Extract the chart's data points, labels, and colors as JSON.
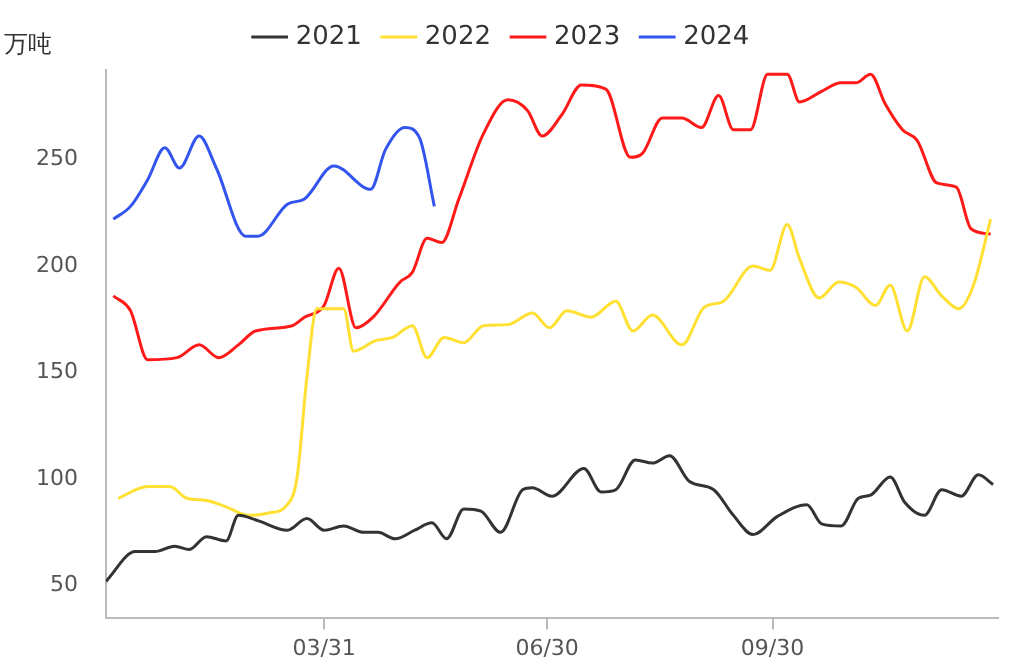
{
  "chart_data": {
    "type": "line",
    "ylabel": "万吨",
    "xlim": [
      "--01-01",
      "--12-31"
    ],
    "xticks": [
      {
        "value": "--03-31",
        "label": "03/31"
      },
      {
        "value": "--06-30",
        "label": "06/30"
      },
      {
        "value": "--09-30",
        "label": "09/30"
      }
    ],
    "ylim": [
      35,
      292
    ],
    "yticks": [
      50,
      100,
      150,
      200,
      250
    ],
    "grid": false,
    "legend": "top",
    "marker": "none",
    "line_style": "solid",
    "series": [
      {
        "name": "2021",
        "color": "#333333",
        "x": [
          "--01-01",
          "--01-13",
          "--01-21",
          "--01-29",
          "--02-04",
          "--02-11",
          "--02-19",
          "--02-24",
          "--03-04",
          "--03-16",
          "--03-24",
          "--03-31",
          "--04-08",
          "--04-16",
          "--04-22",
          "--04-29",
          "--05-07",
          "--05-14",
          "--05-20",
          "--05-27",
          "--06-03",
          "--06-11",
          "--06-20",
          "--06-24",
          "--07-02",
          "--07-15",
          "--07-22",
          "--07-28",
          "--08-05",
          "--08-12",
          "--08-19",
          "--08-27",
          "--09-06",
          "--09-14",
          "--09-22",
          "--10-02",
          "--10-14",
          "--10-20",
          "--10-28",
          "--11-04",
          "--11-09",
          "--11-17",
          "--11-23",
          "--12-01",
          "--12-08",
          "--12-16",
          "--12-23",
          "--12-29"
        ],
        "values": [
          52,
          66,
          66,
          68.5,
          67,
          73,
          71,
          83,
          80.5,
          76,
          81.5,
          76,
          78,
          75,
          75,
          72,
          76,
          79.5,
          72,
          86,
          85,
          75,
          95,
          96,
          92,
          105,
          94,
          95,
          109,
          107.5,
          111,
          99,
          95,
          83,
          74,
          82.5,
          88,
          79,
          78,
          91,
          92.5,
          101,
          89,
          83,
          95,
          92,
          102,
          97.5
        ]
      },
      {
        "name": "2022",
        "color": "#ffe033",
        "x": [
          "--01-06",
          "--01-18",
          "--01-27",
          "--02-03",
          "--02-11",
          "--02-19",
          "--02-28",
          "--03-08",
          "--03-16",
          "--03-20",
          "--03-24",
          "--03-28",
          "--04-08",
          "--04-12",
          "--04-21",
          "--04-28",
          "--05-06",
          "--05-12",
          "--05-19",
          "--05-27",
          "--06-04",
          "--06-14",
          "--06-24",
          "--07-01",
          "--07-08",
          "--07-18",
          "--07-28",
          "--08-04",
          "--08-12",
          "--08-24",
          "--09-02",
          "--09-10",
          "--09-22",
          "--09-29",
          "--10-06",
          "--10-11",
          "--10-19",
          "--10-27",
          "--11-03",
          "--11-11",
          "--11-17",
          "--11-24",
          "--12-01",
          "--12-08",
          "--12-15",
          "--12-21",
          "--12-28"
        ],
        "values": [
          91,
          96.5,
          96.5,
          91,
          90,
          87,
          83,
          84,
          88,
          101,
          148,
          180,
          180,
          160,
          165,
          166.5,
          172,
          157,
          166.5,
          164,
          172,
          172.5,
          178,
          171,
          179,
          176,
          183.5,
          169.5,
          177,
          163,
          180.5,
          183.5,
          200,
          198,
          219.5,
          203.5,
          185,
          192.5,
          190,
          181.5,
          191,
          169.5,
          195,
          186,
          180,
          191,
          222
        ]
      },
      {
        "name": "2023",
        "color": "#ff1a1a",
        "x": [
          "--01-04",
          "--01-11",
          "--01-18",
          "--01-30",
          "--02-08",
          "--02-16",
          "--02-24",
          "--03-03",
          "--03-18",
          "--03-23",
          "--03-31",
          "--04-06",
          "--04-13",
          "--04-20",
          "--05-01",
          "--05-06",
          "--05-12",
          "--05-18",
          "--05-25",
          "--06-04",
          "--06-14",
          "--06-22",
          "--06-28",
          "--07-06",
          "--07-14",
          "--07-24",
          "--08-03",
          "--08-08",
          "--08-16",
          "--08-24",
          "--09-01",
          "--09-08",
          "--09-14",
          "--09-21",
          "--09-28",
          "--10-06",
          "--10-11",
          "--10-20",
          "--10-28",
          "--11-03",
          "--11-09",
          "--11-15",
          "--11-22",
          "--11-28",
          "--12-06",
          "--12-14",
          "--12-20",
          "--12-28"
        ],
        "values": [
          186,
          179,
          156,
          157,
          163,
          157,
          163,
          169.5,
          172,
          176,
          181.5,
          199,
          171,
          176,
          192.5,
          197,
          213,
          211,
          231.5,
          262,
          278,
          273,
          261,
          271,
          285,
          283,
          251,
          253,
          269.5,
          269.5,
          265,
          280,
          264,
          264,
          290,
          290,
          277,
          282,
          286,
          286,
          290,
          276,
          264,
          259,
          239,
          237,
          217.5,
          215
        ]
      },
      {
        "name": "2024",
        "color": "#3355ee",
        "x": [
          "--01-04",
          "--01-11",
          "--01-18",
          "--01-25",
          "--01-31",
          "--02-08",
          "--02-15",
          "--02-27",
          "--03-04",
          "--03-16",
          "--03-23",
          "--04-04",
          "--04-19",
          "--04-25",
          "--05-03",
          "--05-09",
          "--05-15"
        ],
        "values": [
          222,
          228,
          240.5,
          255.5,
          246,
          261,
          246,
          214,
          214,
          229,
          231.5,
          247,
          236,
          254.5,
          265,
          260,
          228
        ]
      }
    ]
  }
}
